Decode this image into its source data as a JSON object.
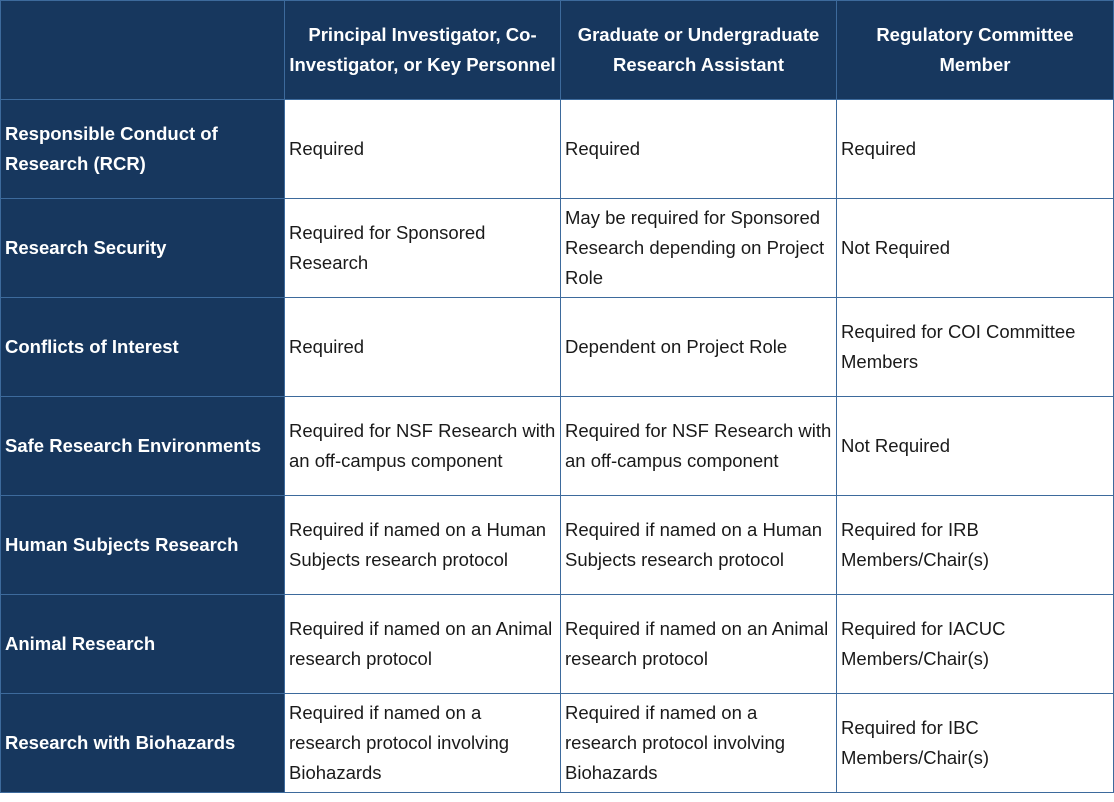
{
  "table": {
    "columns": [
      "Principal Investigator, Co-Investigator, or Key Personnel",
      "Graduate or Undergraduate Research Assistant",
      "Regulatory Committee Member"
    ],
    "rows": [
      {
        "label": "Responsible Conduct of Research (RCR)",
        "cells": [
          "Required",
          "Required",
          "Required"
        ]
      },
      {
        "label": "Research Security",
        "cells": [
          "Required for Sponsored Research",
          "May be required for Sponsored Research depending on Project Role",
          "Not Required"
        ]
      },
      {
        "label": "Conflicts of Interest",
        "cells": [
          "Required",
          "Dependent on Project Role",
          "Required for COI Committee Members"
        ]
      },
      {
        "label": "Safe Research Environments",
        "cells": [
          "Required for NSF Research with an off-campus component",
          "Required for NSF Research with an off-campus component",
          "Not Required"
        ]
      },
      {
        "label": "Human Subjects Research",
        "cells": [
          "Required if named on a Human Subjects research protocol",
          "Required if named on a Human Subjects research protocol",
          "Required for IRB Members/Chair(s)"
        ]
      },
      {
        "label": "Animal Research",
        "cells": [
          "Required if named on an Animal research protocol",
          "Required if named on an Animal research protocol",
          "Required for IACUC Members/Chair(s)"
        ]
      },
      {
        "label": "Research with Biohazards",
        "cells": [
          "Required if named on a research protocol involving Biohazards",
          "Required if named on a research protocol involving Biohazards",
          "Required for IBC Members/Chair(s)"
        ]
      }
    ]
  }
}
